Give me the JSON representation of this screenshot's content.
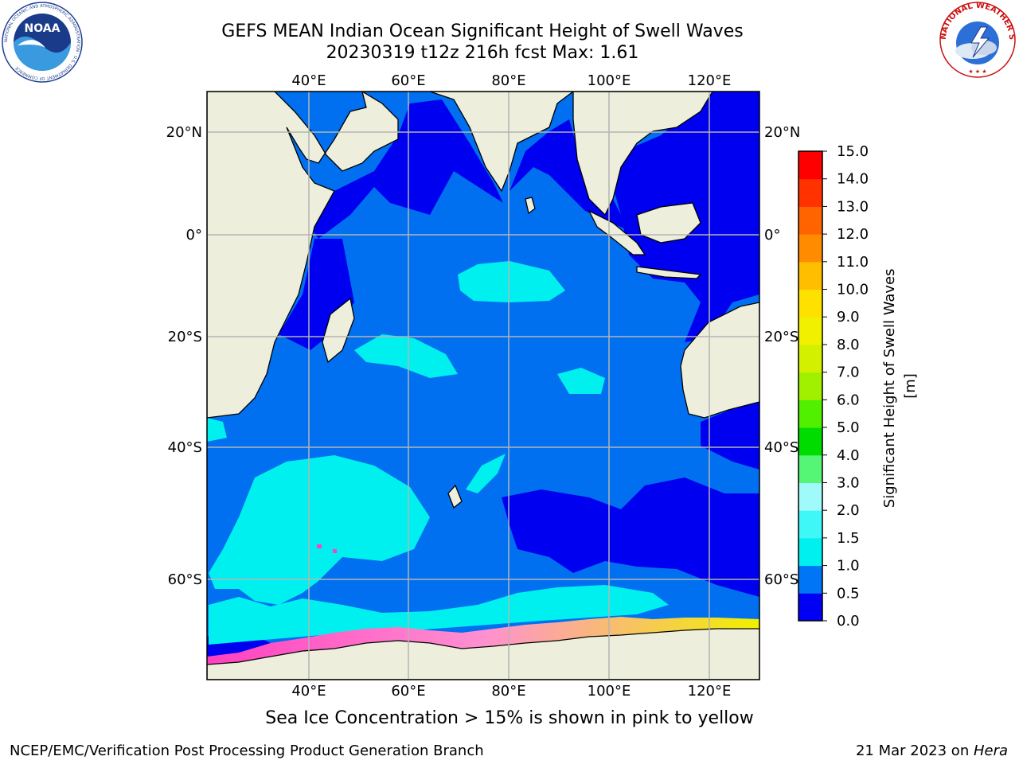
{
  "header": {
    "title_line1": "GEFS MEAN Indian Ocean Significant Height of Swell Waves",
    "title_line2": "20230319 t12z 216h fcst   Max: 1.61"
  },
  "map": {
    "lon_labels": [
      "40°E",
      "60°E",
      "80°E",
      "100°E",
      "120°E"
    ],
    "lat_labels_left": [
      "20°N",
      "0°",
      "20°S",
      "40°S",
      "60°S"
    ],
    "lat_labels_right": [
      "20°N",
      "0°",
      "20°S",
      "40°S",
      "60°S"
    ],
    "colors": {
      "land": "#eeeedc",
      "ocean_dark": "#0000f0",
      "ocean_mid": "#0070f0",
      "ocean_cyan": "#00f0f0",
      "ice_pink": "#ff40c0",
      "ice_yellow": "#f0f000",
      "grid": "#b4b4b4"
    }
  },
  "colorbar": {
    "label": "Significant Height of Swell Waves [m]",
    "ticks": [
      "0.0",
      "0.5",
      "1.0",
      "1.5",
      "2.0",
      "3.0",
      "4.0",
      "5.0",
      "6.0",
      "7.0",
      "8.0",
      "9.0",
      "10.0",
      "11.0",
      "12.0",
      "13.0",
      "14.0",
      "15.0"
    ],
    "colors": [
      "#0000f5",
      "#0075f5",
      "#00f0f0",
      "#40f7f7",
      "#a0fafa",
      "#55f575",
      "#00dc00",
      "#50f000",
      "#a0f000",
      "#d2f000",
      "#f0f000",
      "#ffe100",
      "#ffbe00",
      "#ff8c00",
      "#ff6400",
      "#ff3200",
      "#ff0000"
    ]
  },
  "footer": {
    "note": "Sea Ice Concentration > 15% is shown in pink to yellow",
    "credit_left": "NCEP/EMC/Verification Post Processing Product Generation Branch",
    "credit_right_prefix": "21 Mar 2023 on ",
    "credit_right_host": "Hera"
  },
  "logos": {
    "noaa_text": "NOAA",
    "noaa_ring_text": "NATIONAL OCEANIC AND ATMOSPHERIC ADMINISTRATION · U.S. DEPARTMENT OF COMMERCE",
    "nws_ring_text": "NATIONAL WEATHER SERVICE"
  }
}
